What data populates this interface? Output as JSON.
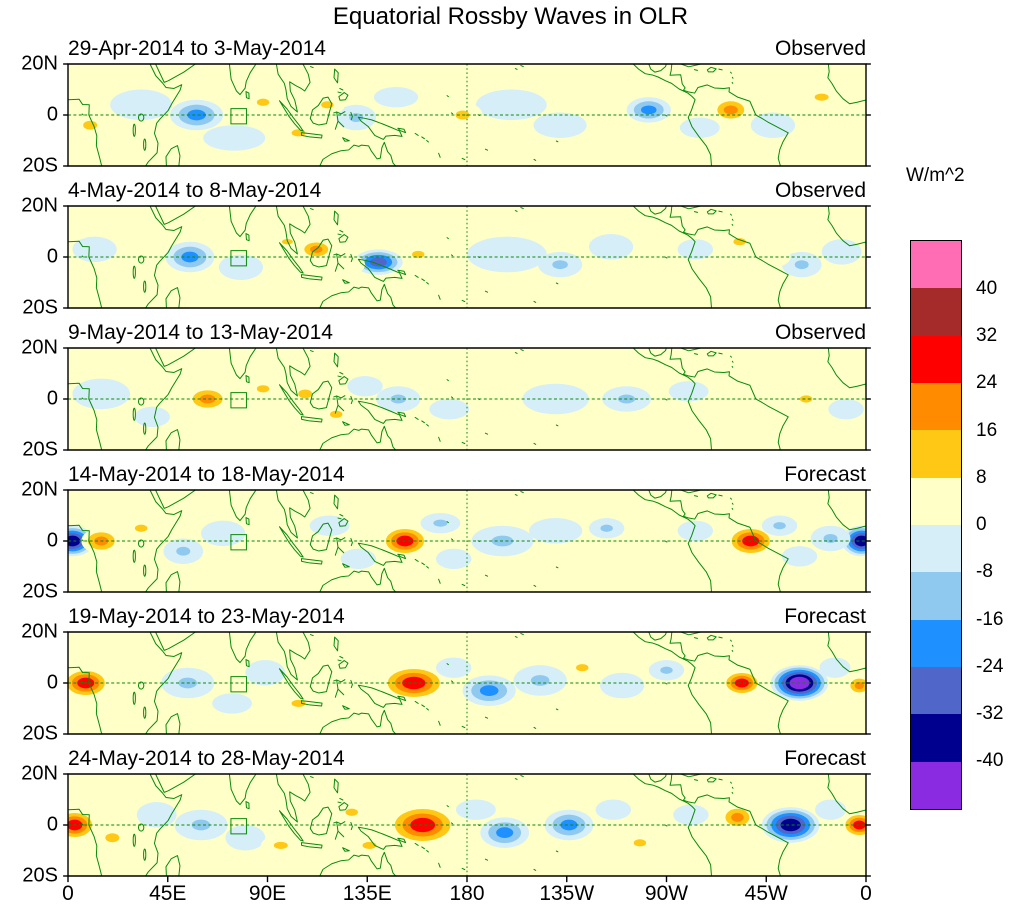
{
  "title": "Equatorial Rossby Waves in OLR",
  "axes": {
    "y_ticks": [
      "20N",
      "0",
      "20S"
    ],
    "x_ticks": [
      "0",
      "45E",
      "90E",
      "135E",
      "180",
      "135W",
      "90W",
      "45W",
      "0"
    ]
  },
  "colorbar": {
    "unit_label": "W/m^2",
    "tick_labels": [
      "40",
      "32",
      "24",
      "16",
      "8",
      "0",
      "-8",
      "-16",
      "-24",
      "-32",
      "-40"
    ],
    "colors_top_to_bottom": [
      "#ff6eb4",
      "#a52a2a",
      "#ff0000",
      "#ff8c00",
      "#ffc814",
      "#ffffc8",
      "#d6eef8",
      "#8fc9ef",
      "#1e90ff",
      "#5066c8",
      "#00008f",
      "#8a2be2"
    ]
  },
  "colors": {
    "coastline": "#0a8a0a",
    "frame": "#000000",
    "background": "#ffffc8"
  },
  "chart_data": {
    "type": "heatmap",
    "subtype": "filled_contour_equatorial_maps",
    "title": "Equatorial Rossby Waves in OLR",
    "unit": "W/m^2",
    "contour_interval": 8,
    "value_range": [
      -40,
      40
    ],
    "lon_range_deg": [
      0,
      360
    ],
    "lat_range_deg": [
      -20,
      20
    ],
    "marker_box": {
      "lon_min": 73.5,
      "lon_max": 80.5,
      "lat_min": -3.5,
      "lat_max": 2.5
    },
    "anomaly_columns": [
      "lon_deg_east_0_360",
      "lat_deg_north",
      "rx_deg",
      "ry_deg",
      "peak_wm2"
    ],
    "panels": [
      {
        "title": "29-Apr-2014 to 3-May-2014",
        "status": "Observed",
        "anomalies": [
          [
            10,
            -4,
            9,
            5,
            16
          ],
          [
            33,
            4,
            14,
            6,
            -8
          ],
          [
            58,
            0,
            12,
            6,
            -24
          ],
          [
            75,
            -9,
            14,
            5,
            -8
          ],
          [
            88,
            5,
            8,
            4,
            16
          ],
          [
            104,
            -7,
            9,
            4,
            16
          ],
          [
            117,
            4,
            8,
            4,
            16
          ],
          [
            130,
            -1,
            9,
            5,
            -16
          ],
          [
            148,
            7,
            10,
            4,
            -8
          ],
          [
            160,
            -6,
            9,
            4,
            8
          ],
          [
            178,
            0,
            9,
            5,
            16
          ],
          [
            200,
            4,
            16,
            6,
            -8
          ],
          [
            222,
            -4,
            12,
            5,
            -8
          ],
          [
            243,
            3,
            10,
            5,
            8
          ],
          [
            262,
            2,
            10,
            5,
            -24
          ],
          [
            285,
            -5,
            9,
            4,
            -8
          ],
          [
            299,
            2,
            9,
            5,
            24
          ],
          [
            318,
            -4,
            10,
            5,
            -8
          ],
          [
            340,
            7,
            9,
            4,
            16
          ],
          [
            352,
            -2,
            8,
            4,
            8
          ]
        ]
      },
      {
        "title": "4-May-2014 to 8-May-2014",
        "status": "Observed",
        "anomalies": [
          [
            12,
            3,
            10,
            5,
            -8
          ],
          [
            30,
            -4,
            9,
            5,
            8
          ],
          [
            55,
            0,
            11,
            6,
            -24
          ],
          [
            78,
            -4,
            10,
            5,
            -8
          ],
          [
            99,
            6,
            7,
            3,
            16
          ],
          [
            112,
            3,
            8,
            4,
            24
          ],
          [
            126,
            -3,
            8,
            4,
            8
          ],
          [
            140,
            -2,
            11,
            5,
            -32
          ],
          [
            158,
            1,
            8,
            4,
            16
          ],
          [
            172,
            -6,
            8,
            4,
            8
          ],
          [
            198,
            1,
            18,
            7,
            -8
          ],
          [
            222,
            -3,
            10,
            5,
            -16
          ],
          [
            245,
            4,
            10,
            5,
            -8
          ],
          [
            262,
            -2,
            9,
            4,
            8
          ],
          [
            283,
            3,
            8,
            4,
            -8
          ],
          [
            303,
            6,
            8,
            4,
            16
          ],
          [
            318,
            0,
            8,
            4,
            8
          ],
          [
            331,
            -3,
            9,
            5,
            -16
          ],
          [
            349,
            2,
            9,
            5,
            -8
          ]
        ]
      },
      {
        "title": "9-May-2014 to 13-May-2014",
        "status": "Observed",
        "anomalies": [
          [
            15,
            2,
            13,
            6,
            -8
          ],
          [
            38,
            -7,
            8,
            4,
            -8
          ],
          [
            63,
            0,
            10,
            5,
            24
          ],
          [
            88,
            4,
            8,
            4,
            16
          ],
          [
            107,
            2,
            9,
            5,
            16
          ],
          [
            121,
            -6,
            8,
            4,
            16
          ],
          [
            134,
            5,
            8,
            4,
            -8
          ],
          [
            149,
            0,
            10,
            5,
            -16
          ],
          [
            172,
            -4,
            9,
            4,
            -8
          ],
          [
            195,
            3,
            10,
            5,
            8
          ],
          [
            220,
            0,
            15,
            6,
            -8
          ],
          [
            252,
            0,
            11,
            5,
            -16
          ],
          [
            280,
            3,
            9,
            4,
            -8
          ],
          [
            305,
            0,
            8,
            4,
            8
          ],
          [
            333,
            0,
            8,
            4,
            16
          ],
          [
            351,
            -4,
            8,
            4,
            -8
          ]
        ]
      },
      {
        "title": "14-May-2014 to 18-May-2014",
        "status": "Forecast",
        "anomalies": [
          [
            2,
            0,
            10,
            6,
            -40
          ],
          [
            358,
            0,
            9,
            6,
            -40
          ],
          [
            15,
            0,
            9,
            5,
            24
          ],
          [
            33,
            5,
            8,
            4,
            16
          ],
          [
            52,
            -4,
            9,
            5,
            -16
          ],
          [
            70,
            3,
            10,
            5,
            -8
          ],
          [
            90,
            -6,
            8,
            4,
            8
          ],
          [
            100,
            2,
            11,
            5,
            8
          ],
          [
            118,
            6,
            9,
            4,
            -8
          ],
          [
            131,
            -7,
            8,
            4,
            -8
          ],
          [
            152,
            0,
            11,
            6,
            32
          ],
          [
            168,
            7,
            9,
            4,
            -16
          ],
          [
            174,
            -7,
            8,
            4,
            -8
          ],
          [
            196,
            0,
            14,
            6,
            -16
          ],
          [
            220,
            4,
            12,
            5,
            -8
          ],
          [
            243,
            5,
            8,
            4,
            -16
          ],
          [
            263,
            -2,
            10,
            5,
            8
          ],
          [
            283,
            4,
            8,
            4,
            -8
          ],
          [
            308,
            0,
            11,
            6,
            32
          ],
          [
            321,
            6,
            8,
            4,
            -16
          ],
          [
            330,
            -6,
            8,
            4,
            -8
          ],
          [
            344,
            1,
            9,
            5,
            -16
          ]
        ]
      },
      {
        "title": "19-May-2014 to 23-May-2014",
        "status": "Forecast",
        "anomalies": [
          [
            8,
            0,
            11,
            6,
            32
          ],
          [
            357,
            -1,
            6,
            4,
            24
          ],
          [
            28,
            -4,
            10,
            5,
            8
          ],
          [
            54,
            0,
            12,
            6,
            -16
          ],
          [
            74,
            -8,
            9,
            4,
            -8
          ],
          [
            89,
            4,
            9,
            5,
            -8
          ],
          [
            104,
            -8,
            9,
            4,
            16
          ],
          [
            120,
            3,
            9,
            5,
            8
          ],
          [
            137,
            -5,
            8,
            4,
            8
          ],
          [
            156,
            0,
            15,
            7,
            32
          ],
          [
            174,
            6,
            8,
            4,
            -8
          ],
          [
            190,
            -3,
            12,
            6,
            -24
          ],
          [
            213,
            1,
            12,
            6,
            -16
          ],
          [
            232,
            6,
            8,
            4,
            16
          ],
          [
            250,
            -1,
            10,
            5,
            -8
          ],
          [
            270,
            5,
            8,
            4,
            -16
          ],
          [
            289,
            -4,
            8,
            4,
            8
          ],
          [
            304,
            0,
            9,
            5,
            32
          ],
          [
            330,
            0,
            13,
            7,
            -48
          ],
          [
            346,
            6,
            7,
            4,
            -8
          ]
        ]
      },
      {
        "title": "24-May-2014 to 28-May-2014",
        "status": "Forecast",
        "anomalies": [
          [
            3,
            0,
            10,
            6,
            32
          ],
          [
            357,
            0,
            8,
            5,
            32
          ],
          [
            20,
            -5,
            9,
            5,
            16
          ],
          [
            40,
            4,
            9,
            5,
            -8
          ],
          [
            60,
            0,
            12,
            6,
            -16
          ],
          [
            80,
            -5,
            9,
            5,
            -8
          ],
          [
            96,
            -8,
            9,
            4,
            16
          ],
          [
            112,
            0,
            9,
            5,
            8
          ],
          [
            128,
            5,
            8,
            4,
            16
          ],
          [
            136,
            -8,
            9,
            4,
            16
          ],
          [
            160,
            0,
            16,
            8,
            32
          ],
          [
            184,
            6,
            9,
            4,
            -8
          ],
          [
            197,
            -3,
            11,
            6,
            -24
          ],
          [
            226,
            0,
            11,
            6,
            -24
          ],
          [
            246,
            6,
            8,
            4,
            -8
          ],
          [
            258,
            -7,
            8,
            4,
            16
          ],
          [
            281,
            4,
            8,
            4,
            -8
          ],
          [
            302,
            3,
            8,
            5,
            24
          ],
          [
            326,
            0,
            13,
            7,
            -40
          ],
          [
            344,
            6,
            7,
            4,
            -8
          ]
        ]
      }
    ]
  }
}
